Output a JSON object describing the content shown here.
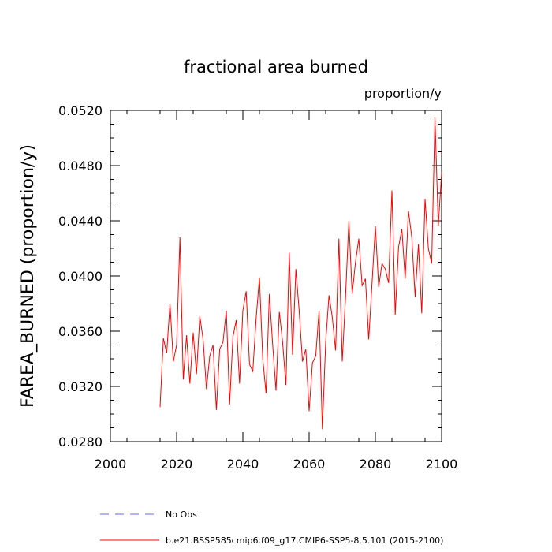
{
  "chart_data": {
    "type": "line",
    "title": "fractional area burned",
    "units_label": "proportion/y",
    "ylabel": "FAREA_BURNED  (proportion/y)",
    "xlabel": "",
    "xlim": [
      2000,
      2100
    ],
    "ylim": [
      0.028,
      0.052
    ],
    "x_ticks": [
      2000,
      2020,
      2040,
      2060,
      2080,
      2100
    ],
    "x_tick_labels": [
      "2000",
      "2020",
      "2040",
      "2060",
      "2080",
      "2100"
    ],
    "y_ticks": [
      0.028,
      0.032,
      0.036,
      0.04,
      0.044,
      0.048,
      0.052
    ],
    "y_tick_labels": [
      "0.0280",
      "0.0320",
      "0.0360",
      "0.0400",
      "0.0440",
      "0.0480",
      "0.0520"
    ],
    "grid": false,
    "legend": [
      {
        "label": "No Obs",
        "color": "#6a6ae0",
        "style": "dashed"
      },
      {
        "label": "b.e21.BSSP585cmip6.f09_g17.CMIP6-SSP5-8.5.101 (2015-2100)",
        "color": "#ff0000",
        "style": "solid"
      }
    ],
    "series": [
      {
        "name": "b.e21.BSSP585cmip6.f09_g17.CMIP6-SSP5-8.5.101 (2015-2100)",
        "color": "#ff0000",
        "x": [
          2015,
          2016,
          2017,
          2018,
          2019,
          2020,
          2021,
          2022,
          2023,
          2024,
          2025,
          2026,
          2027,
          2028,
          2029,
          2030,
          2031,
          2032,
          2033,
          2034,
          2035,
          2036,
          2037,
          2038,
          2039,
          2040,
          2041,
          2042,
          2043,
          2044,
          2045,
          2046,
          2047,
          2048,
          2049,
          2050,
          2051,
          2052,
          2053,
          2054,
          2055,
          2056,
          2057,
          2058,
          2059,
          2060,
          2061,
          2062,
          2063,
          2064,
          2065,
          2066,
          2067,
          2068,
          2069,
          2070,
          2071,
          2072,
          2073,
          2074,
          2075,
          2076,
          2077,
          2078,
          2079,
          2080,
          2081,
          2082,
          2083,
          2084,
          2085,
          2086,
          2087,
          2088,
          2089,
          2090,
          2091,
          2092,
          2093,
          2094,
          2095,
          2096,
          2097,
          2098,
          2099,
          2100
        ],
        "values": [
          0.0305,
          0.0355,
          0.0344,
          0.038,
          0.0338,
          0.035,
          0.0428,
          0.0325,
          0.0357,
          0.0322,
          0.0359,
          0.0329,
          0.0371,
          0.0354,
          0.0318,
          0.0342,
          0.035,
          0.0303,
          0.0347,
          0.0352,
          0.0375,
          0.0307,
          0.0356,
          0.0368,
          0.0322,
          0.0375,
          0.0389,
          0.0336,
          0.0331,
          0.0369,
          0.0399,
          0.034,
          0.0315,
          0.0387,
          0.035,
          0.0317,
          0.0374,
          0.0352,
          0.0321,
          0.0417,
          0.0343,
          0.0405,
          0.0375,
          0.0338,
          0.0347,
          0.0302,
          0.0337,
          0.0342,
          0.0375,
          0.0289,
          0.0352,
          0.0386,
          0.037,
          0.0346,
          0.0427,
          0.0338,
          0.0385,
          0.044,
          0.0387,
          0.041,
          0.0427,
          0.0393,
          0.0398,
          0.0354,
          0.0395,
          0.0436,
          0.0392,
          0.0409,
          0.0405,
          0.0395,
          0.0462,
          0.0372,
          0.0421,
          0.0434,
          0.0398,
          0.0447,
          0.0428,
          0.0385,
          0.0423,
          0.0373,
          0.0456,
          0.042,
          0.0409,
          0.0515,
          0.0436,
          0.0475
        ]
      }
    ]
  }
}
